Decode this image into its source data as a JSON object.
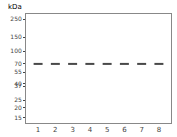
{
  "chart_data": {
    "type": "band",
    "ylabel": "kDa",
    "categories": [
      "1",
      "2",
      "3",
      "4",
      "5",
      "6",
      "7",
      "8"
    ],
    "values": [
      70,
      70,
      70,
      70,
      70,
      70,
      70,
      70
    ],
    "band_height": 4.0,
    "color": "#303030",
    "log": "y",
    "ylim": [
      13,
      290
    ],
    "yticks": [
      250,
      150,
      100,
      70,
      55,
      40,
      37,
      25,
      20,
      15
    ],
    "grid": false
  }
}
